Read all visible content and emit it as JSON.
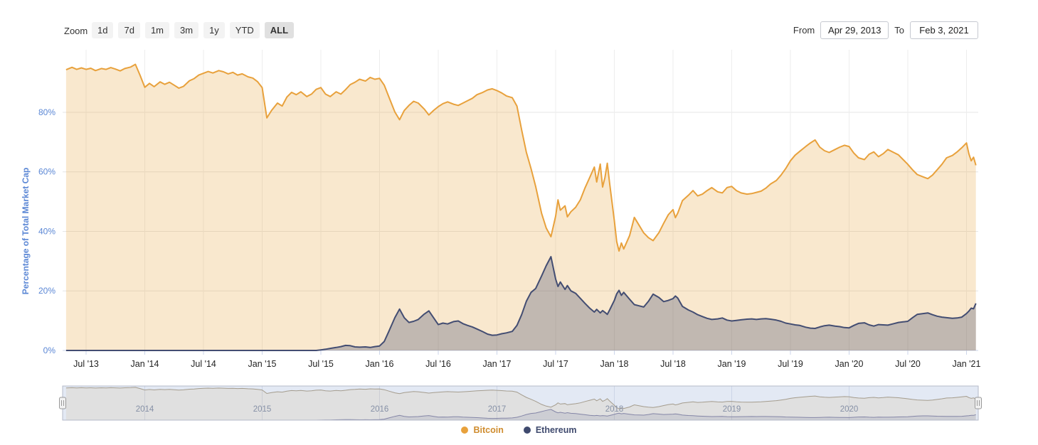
{
  "toolbar": {
    "zoom_label": "Zoom",
    "zoom_buttons": [
      {
        "label": "1d",
        "selected": false
      },
      {
        "label": "7d",
        "selected": false
      },
      {
        "label": "1m",
        "selected": false
      },
      {
        "label": "3m",
        "selected": false
      },
      {
        "label": "1y",
        "selected": false
      },
      {
        "label": "YTD",
        "selected": false
      },
      {
        "label": "ALL",
        "selected": true
      }
    ]
  },
  "range": {
    "from_label": "From",
    "from_value": "Apr 29, 2013",
    "to_label": "To",
    "to_value": "Feb 3, 2021"
  },
  "legend": [
    {
      "label": "Bitcoin",
      "color": "#e8a13c",
      "text_color": "#cf8c2e"
    },
    {
      "label": "Ethereum",
      "color": "#3f4a6e",
      "text_color": "#3f4a6e"
    }
  ],
  "colors": {
    "axis_blue": "#5b87d5",
    "axis_dark": "#222222",
    "grid": "#e6e6e6",
    "grid_vertical": "#ededed",
    "axis_line": "#ccd6eb",
    "nav_mask": "rgba(102,133,194,0.18)",
    "nav_outline": "#b4bac9",
    "nav_gridline": "#e3e7f0",
    "nav_year_label": "#8d93a0",
    "handle_fill": "#f2f2f2",
    "handle_stroke": "#999999"
  },
  "chart_data": {
    "type": "area",
    "title": "",
    "xlabel": "",
    "ylabel": "Percentage of Total Market Cap",
    "ylim": [
      0,
      101
    ],
    "xlim": [
      2013.3,
      2021.1
    ],
    "grid": true,
    "legend_position": "bottom",
    "yticks": [
      {
        "v": 0,
        "label": "0%"
      },
      {
        "v": 20,
        "label": "20%"
      },
      {
        "v": 40,
        "label": "40%"
      },
      {
        "v": 60,
        "label": "60%"
      },
      {
        "v": 80,
        "label": "80%"
      }
    ],
    "xticks": [
      {
        "v": 2013.5,
        "label": "Jul '13"
      },
      {
        "v": 2014.0,
        "label": "Jan '14"
      },
      {
        "v": 2014.5,
        "label": "Jul '14"
      },
      {
        "v": 2015.0,
        "label": "Jan '15"
      },
      {
        "v": 2015.5,
        "label": "Jul '15"
      },
      {
        "v": 2016.0,
        "label": "Jan '16"
      },
      {
        "v": 2016.5,
        "label": "Jul '16"
      },
      {
        "v": 2017.0,
        "label": "Jan '17"
      },
      {
        "v": 2017.5,
        "label": "Jul '17"
      },
      {
        "v": 2018.0,
        "label": "Jan '18"
      },
      {
        "v": 2018.5,
        "label": "Jul '18"
      },
      {
        "v": 2019.0,
        "label": "Jan '19"
      },
      {
        "v": 2019.5,
        "label": "Jul '19"
      },
      {
        "v": 2020.0,
        "label": "Jan '20"
      },
      {
        "v": 2020.5,
        "label": "Jul '20"
      },
      {
        "v": 2021.0,
        "label": "Jan '21"
      }
    ],
    "navigator_years": [
      {
        "v": 2014,
        "label": "2014"
      },
      {
        "v": 2015,
        "label": "2015"
      },
      {
        "v": 2016,
        "label": "2016"
      },
      {
        "v": 2017,
        "label": "2017"
      },
      {
        "v": 2018,
        "label": "2018"
      },
      {
        "v": 2019,
        "label": "2019"
      },
      {
        "v": 2020,
        "label": "2020"
      }
    ],
    "x": [
      2013.33,
      2013.38,
      2013.42,
      2013.46,
      2013.5,
      2013.54,
      2013.58,
      2013.63,
      2013.67,
      2013.71,
      2013.75,
      2013.79,
      2013.83,
      2013.88,
      2013.92,
      2013.96,
      2014.0,
      2014.04,
      2014.08,
      2014.13,
      2014.17,
      2014.21,
      2014.25,
      2014.29,
      2014.33,
      2014.38,
      2014.42,
      2014.46,
      2014.5,
      2014.54,
      2014.58,
      2014.63,
      2014.67,
      2014.71,
      2014.75,
      2014.79,
      2014.83,
      2014.88,
      2014.92,
      2014.96,
      2015.0,
      2015.04,
      2015.08,
      2015.13,
      2015.17,
      2015.21,
      2015.25,
      2015.29,
      2015.33,
      2015.38,
      2015.42,
      2015.46,
      2015.5,
      2015.54,
      2015.58,
      2015.63,
      2015.67,
      2015.71,
      2015.75,
      2015.79,
      2015.83,
      2015.88,
      2015.92,
      2015.96,
      2016.0,
      2016.04,
      2016.08,
      2016.13,
      2016.17,
      2016.21,
      2016.25,
      2016.29,
      2016.33,
      2016.38,
      2016.42,
      2016.46,
      2016.5,
      2016.54,
      2016.58,
      2016.63,
      2016.67,
      2016.71,
      2016.75,
      2016.79,
      2016.83,
      2016.88,
      2016.92,
      2016.96,
      2017.0,
      2017.04,
      2017.08,
      2017.13,
      2017.17,
      2017.21,
      2017.25,
      2017.29,
      2017.33,
      2017.38,
      2017.42,
      2017.46,
      2017.5,
      2017.52,
      2017.54,
      2017.58,
      2017.6,
      2017.63,
      2017.67,
      2017.71,
      2017.75,
      2017.79,
      2017.83,
      2017.85,
      2017.88,
      2017.9,
      2017.92,
      2017.94,
      2017.96,
      2018.0,
      2018.02,
      2018.04,
      2018.06,
      2018.08,
      2018.13,
      2018.17,
      2018.21,
      2018.25,
      2018.29,
      2018.33,
      2018.38,
      2018.42,
      2018.46,
      2018.5,
      2018.52,
      2018.54,
      2018.58,
      2018.63,
      2018.67,
      2018.71,
      2018.75,
      2018.79,
      2018.83,
      2018.88,
      2018.92,
      2018.96,
      2019.0,
      2019.04,
      2019.08,
      2019.13,
      2019.17,
      2019.21,
      2019.25,
      2019.29,
      2019.33,
      2019.38,
      2019.42,
      2019.46,
      2019.5,
      2019.54,
      2019.58,
      2019.63,
      2019.67,
      2019.71,
      2019.75,
      2019.79,
      2019.83,
      2019.88,
      2019.92,
      2019.96,
      2020.0,
      2020.04,
      2020.08,
      2020.13,
      2020.17,
      2020.21,
      2020.25,
      2020.29,
      2020.33,
      2020.38,
      2020.42,
      2020.46,
      2020.5,
      2020.54,
      2020.58,
      2020.63,
      2020.67,
      2020.71,
      2020.75,
      2020.79,
      2020.83,
      2020.88,
      2020.92,
      2020.96,
      2021.0,
      2021.02,
      2021.04,
      2021.06,
      2021.08
    ],
    "series": [
      {
        "name": "Bitcoin",
        "color": "#e8a13c",
        "fill": "rgba(233,162,59,0.25)",
        "nav_color": "#b2a182",
        "nav_fill": "rgba(233,162,59,0.12)",
        "values": [
          94.3,
          95.1,
          94.4,
          94.9,
          94.4,
          94.8,
          94.0,
          94.7,
          94.4,
          95.0,
          94.5,
          93.9,
          94.7,
          95.2,
          96.1,
          92.4,
          88.4,
          89.7,
          88.6,
          90.2,
          89.4,
          90.1,
          89.1,
          88.1,
          88.7,
          90.6,
          91.3,
          92.5,
          93.1,
          93.7,
          93.2,
          94.0,
          93.6,
          92.9,
          93.4,
          92.5,
          92.9,
          91.9,
          91.5,
          90.3,
          88.3,
          78.1,
          80.6,
          83.1,
          82.1,
          85.1,
          86.7,
          85.9,
          86.9,
          85.3,
          86.1,
          87.7,
          88.3,
          86.1,
          85.3,
          86.9,
          86.1,
          87.6,
          89.3,
          90.1,
          91.1,
          90.5,
          91.7,
          91.1,
          91.4,
          89.1,
          85.1,
          80.1,
          77.5,
          80.6,
          82.3,
          83.7,
          83.1,
          81.1,
          79.1,
          80.6,
          81.9,
          82.9,
          83.5,
          82.7,
          82.3,
          83.1,
          83.9,
          84.7,
          85.9,
          86.7,
          87.5,
          87.9,
          87.3,
          86.5,
          85.5,
          84.9,
          82.1,
          74.1,
          66.6,
          61.1,
          55.1,
          46.1,
          41.1,
          38.2,
          45.1,
          50.6,
          47.1,
          48.6,
          44.9,
          46.6,
          48.1,
          50.6,
          54.6,
          58.1,
          61.6,
          56.6,
          62.6,
          54.9,
          58.1,
          62.9,
          56.1,
          43.6,
          36.6,
          33.4,
          36.1,
          34.1,
          38.6,
          44.7,
          42.1,
          39.5,
          37.9,
          36.9,
          39.6,
          42.7,
          45.6,
          47.3,
          44.6,
          46.1,
          50.3,
          52.1,
          53.7,
          51.9,
          52.5,
          53.7,
          54.7,
          53.3,
          52.9,
          54.7,
          55.1,
          53.7,
          52.9,
          52.5,
          52.7,
          53.1,
          53.5,
          54.5,
          55.9,
          57.1,
          58.9,
          61.1,
          63.7,
          65.6,
          66.9,
          68.5,
          69.7,
          70.7,
          68.3,
          67.1,
          66.5,
          67.5,
          68.3,
          68.9,
          68.5,
          66.3,
          64.7,
          64.1,
          65.9,
          66.7,
          65.1,
          66.1,
          67.5,
          66.5,
          65.7,
          64.1,
          62.5,
          60.7,
          59.1,
          58.3,
          57.7,
          58.9,
          60.7,
          62.5,
          64.7,
          65.5,
          66.7,
          68.1,
          69.7,
          66.1,
          63.7,
          64.9,
          62.2
        ]
      },
      {
        "name": "Ethereum",
        "color": "#434d72",
        "fill": "rgba(63,74,110,0.30)",
        "nav_color": "#8c87a2",
        "nav_fill": "rgba(63,74,110,0.12)",
        "values": [
          0,
          0,
          0,
          0,
          0,
          0,
          0,
          0,
          0,
          0,
          0,
          0,
          0,
          0,
          0,
          0,
          0,
          0,
          0,
          0,
          0,
          0,
          0,
          0,
          0,
          0,
          0,
          0,
          0,
          0,
          0,
          0,
          0,
          0,
          0,
          0,
          0,
          0,
          0,
          0,
          0,
          0,
          0,
          0,
          0,
          0,
          0,
          0,
          0,
          0,
          0,
          0,
          0.2,
          0.4,
          0.7,
          1.0,
          1.3,
          1.7,
          1.6,
          1.2,
          1.1,
          1.2,
          1.0,
          1.3,
          1.5,
          3.0,
          6.5,
          11.0,
          13.9,
          11.0,
          9.4,
          9.8,
          10.4,
          12.2,
          13.3,
          11.0,
          8.7,
          9.2,
          8.9,
          9.7,
          9.9,
          9.0,
          8.4,
          7.9,
          7.2,
          6.3,
          5.5,
          5.1,
          5.2,
          5.6,
          5.9,
          6.4,
          8.4,
          12.0,
          16.5,
          19.5,
          20.8,
          25.0,
          28.5,
          31.5,
          24.0,
          21.5,
          23.0,
          20.5,
          21.8,
          20.0,
          19.2,
          17.5,
          15.8,
          14.2,
          12.9,
          13.8,
          12.6,
          13.4,
          12.8,
          12.1,
          13.6,
          16.8,
          19.0,
          20.2,
          18.5,
          19.5,
          17.2,
          15.4,
          15.0,
          14.6,
          16.5,
          18.9,
          17.8,
          16.4,
          16.8,
          17.4,
          18.3,
          17.6,
          14.8,
          13.6,
          12.9,
          12.0,
          11.4,
          10.8,
          10.4,
          10.6,
          10.9,
          10.2,
          9.9,
          10.1,
          10.3,
          10.5,
          10.6,
          10.4,
          10.6,
          10.7,
          10.5,
          10.2,
          9.8,
          9.2,
          8.9,
          8.6,
          8.4,
          7.8,
          7.5,
          7.4,
          7.9,
          8.3,
          8.5,
          8.2,
          8.0,
          7.7,
          7.6,
          8.4,
          9.1,
          9.3,
          8.6,
          8.2,
          8.7,
          8.6,
          8.5,
          9.0,
          9.4,
          9.6,
          9.8,
          11.0,
          12.1,
          12.4,
          12.6,
          12.0,
          11.5,
          11.2,
          11.0,
          10.8,
          10.9,
          11.2,
          12.4,
          13.2,
          14.2,
          14.0,
          15.8
        ]
      }
    ]
  }
}
